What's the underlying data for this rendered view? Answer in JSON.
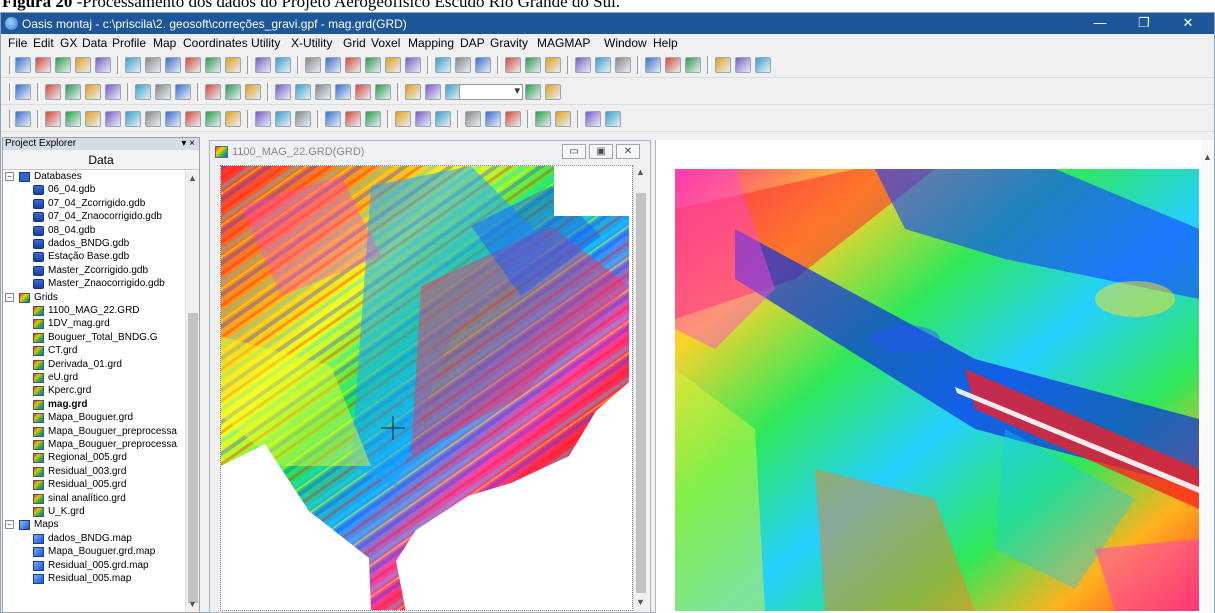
{
  "caption": {
    "figure_label": "Figura 20",
    "text": " -Processamento dos dados do Projeto Aerogeofísico Escudo Rio Grande do Sul."
  },
  "window": {
    "title": "Oasis montaj - c:\\priscila\\2. geosoft\\correções_gravi.gpf - mag.grd(GRD)",
    "minimize": "—",
    "restore": "❐",
    "close": "✕"
  },
  "menu": [
    "File",
    "Edit",
    "GX",
    "Data",
    "Profile",
    "Map",
    "Coordinates",
    "Utility",
    "X-Utility",
    "Grid",
    "Voxel",
    "Mapping",
    "DAP",
    "Gravity",
    "MAGMAP",
    "Window",
    "Help"
  ],
  "explorer": {
    "header": "Project Explorer",
    "header_controls": "▾ ×",
    "tab": "Data",
    "groups": {
      "databases": {
        "label": "Databases",
        "items": [
          "06_04.gdb",
          "07_04_Zcorrigido.gdb",
          "07_04_Znaocorrigido.gdb",
          "08_04.gdb",
          "dados_BNDG.gdb",
          "Estação Base.gdb",
          "Master_Zcorrigido.gdb",
          "Master_Znaocorrigido.gdb"
        ]
      },
      "grids": {
        "label": "Grids",
        "items": [
          "1100_MAG_22.GRD",
          "1DV_mag.grd",
          "Bouguer_Total_BNDG.G",
          "CT.grd",
          "Derivada_01.grd",
          "eU.grd",
          "Kperc.grd",
          "mag.grd",
          "Mapa_Bouguer.grd",
          "Mapa_Bouguer_preprocessa",
          "Mapa_Bouguer_preprocessa",
          "Regional_005.grd",
          "Residual_003.grd",
          "Residual_005.grd",
          "sinal analítico.grd",
          "U_K.grd"
        ],
        "selected": "mag.grd"
      },
      "maps": {
        "label": "Maps",
        "items": [
          "dados_BNDG.map",
          "Mapa_Bouguer.grd.map",
          "Residual_005.grd.map",
          "Residual_005.map"
        ]
      }
    }
  },
  "grid_window": {
    "title": "1100_MAG_22.GRD(GRD)",
    "btn_minimize": "▭",
    "btn_restore": "▣",
    "btn_close": "✕"
  },
  "icons": {
    "toolbar1": [
      "new-project-icon",
      "open-project-icon",
      "new-db-icon",
      "db-icon",
      "db2-icon",
      "open-map-icon",
      "open-map2-icon",
      "grid-icon",
      "grid2-icon",
      "undo-icon",
      "redo-icon",
      "gx-icon",
      "doc-icon",
      "pen-icon",
      "pen2-icon",
      "pen3-icon",
      "pen4-icon",
      "list-icon",
      "list2-icon",
      "play-icon",
      "record-icon",
      "stop-icon",
      "layout-icon",
      "layout2-icon",
      "layout3-icon",
      "profile-icon",
      "profile2-icon",
      "profile3-icon",
      "window-icon",
      "window2-icon",
      "window3-icon",
      "chart-icon",
      "chart2-icon",
      "panel-icon"
    ],
    "toolbar2": [
      "map-icon",
      "select-icon",
      "select2-icon",
      "cursor-icon",
      "star-icon",
      "layer-icon",
      "layer2-icon",
      "bars-icon",
      "print-icon",
      "print2-icon",
      "print3-icon",
      "hand-icon",
      "zoom-icon",
      "zoom-box-icon",
      "zoom-fit-icon",
      "zoom-full-icon",
      "zoom-prev-icon",
      "color-icon",
      "fill-icon",
      "bucket-icon",
      "globe-icon",
      "crosshair-icon",
      "grid-overlay-icon",
      "frame-icon",
      "axis-icon"
    ],
    "toolbar3": [
      "arrow-icon",
      "line-icon",
      "polyline-icon",
      "rectangle-icon",
      "polygon-icon",
      "circle-icon",
      "ellipse-icon",
      "text-icon",
      "symbol-icon",
      "pencil-icon",
      "flag-icon",
      "group-icon",
      "group2-icon",
      "group3-icon",
      "align-icon",
      "align2-icon",
      "align3-icon",
      "distribute-icon",
      "distribute2-icon",
      "distribute3-icon",
      "order-icon",
      "order2-icon",
      "order3-icon",
      "snap-icon",
      "snap2-icon",
      "move-icon",
      "move2-icon"
    ]
  },
  "colors": {
    "titlebar": "#1e5799",
    "accent": "#0078d7"
  }
}
